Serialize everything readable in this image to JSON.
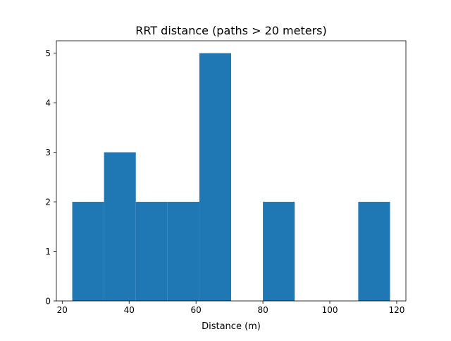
{
  "chart_data": {
    "type": "bar",
    "title": "RRT distance (paths > 20 meters)",
    "xlabel": "Distance (m)",
    "ylabel": "",
    "bins": [
      {
        "x0": 23.0,
        "x1": 32.5,
        "count": 2
      },
      {
        "x0": 32.5,
        "x1": 42.0,
        "count": 3
      },
      {
        "x0": 42.0,
        "x1": 51.5,
        "count": 2
      },
      {
        "x0": 51.5,
        "x1": 61.0,
        "count": 2
      },
      {
        "x0": 61.0,
        "x1": 70.5,
        "count": 5
      },
      {
        "x0": 70.5,
        "x1": 80.0,
        "count": 0
      },
      {
        "x0": 80.0,
        "x1": 89.5,
        "count": 2
      },
      {
        "x0": 89.5,
        "x1": 99.0,
        "count": 0
      },
      {
        "x0": 99.0,
        "x1": 108.5,
        "count": 0
      },
      {
        "x0": 108.5,
        "x1": 118.0,
        "count": 2
      }
    ],
    "xlim": [
      18.25,
      122.75
    ],
    "ylim": [
      0,
      5.25
    ],
    "xticks": [
      20,
      40,
      60,
      80,
      100,
      120
    ],
    "yticks": [
      0,
      1,
      2,
      3,
      4,
      5
    ],
    "bar_color": "#1f77b4",
    "grid": false,
    "legend": "none"
  }
}
